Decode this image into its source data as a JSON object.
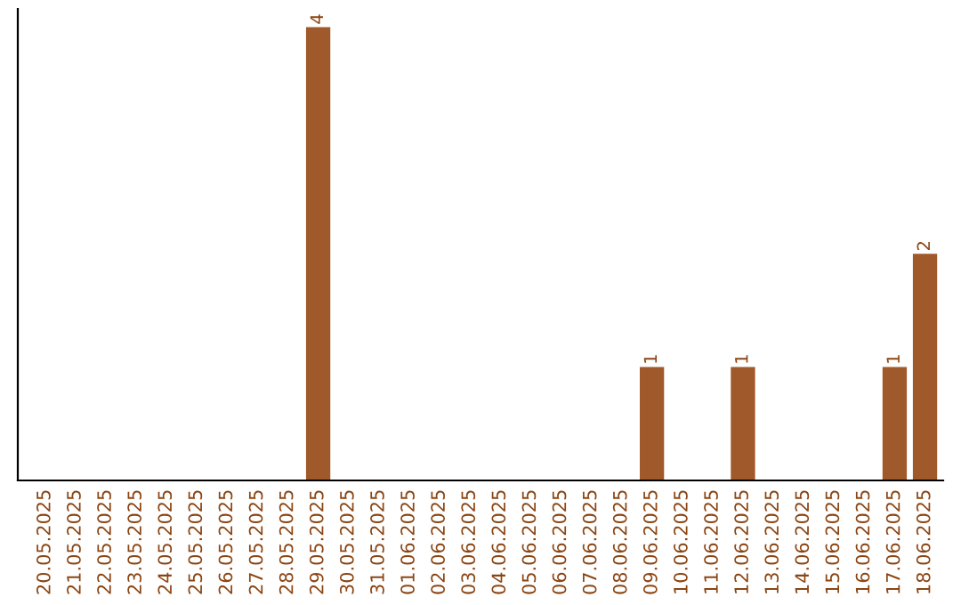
{
  "chart_data": {
    "type": "bar",
    "categories": [
      "20.05.2025",
      "21.05.2025",
      "22.05.2025",
      "23.05.2025",
      "24.05.2025",
      "25.05.2025",
      "26.05.2025",
      "27.05.2025",
      "28.05.2025",
      "29.05.2025",
      "30.05.2025",
      "31.05.2025",
      "01.06.2025",
      "02.06.2025",
      "03.06.2025",
      "04.06.2025",
      "05.06.2025",
      "06.06.2025",
      "07.06.2025",
      "08.06.2025",
      "09.06.2025",
      "10.06.2025",
      "11.06.2025",
      "12.06.2025",
      "13.06.2025",
      "14.06.2025",
      "15.06.2025",
      "16.06.2025",
      "17.06.2025",
      "18.06.2025"
    ],
    "values": [
      0,
      0,
      0,
      0,
      0,
      0,
      0,
      0,
      0,
      4,
      0,
      0,
      0,
      0,
      0,
      0,
      0,
      0,
      0,
      0,
      1,
      0,
      0,
      1,
      0,
      0,
      0,
      0,
      1,
      2
    ],
    "value_labels": [
      null,
      null,
      null,
      null,
      null,
      null,
      null,
      null,
      null,
      "4",
      null,
      null,
      null,
      null,
      null,
      null,
      null,
      null,
      null,
      null,
      "1",
      null,
      null,
      "1",
      null,
      null,
      null,
      null,
      "1",
      "2"
    ],
    "color": "#a0592a",
    "grid": false,
    "legend": false
  }
}
